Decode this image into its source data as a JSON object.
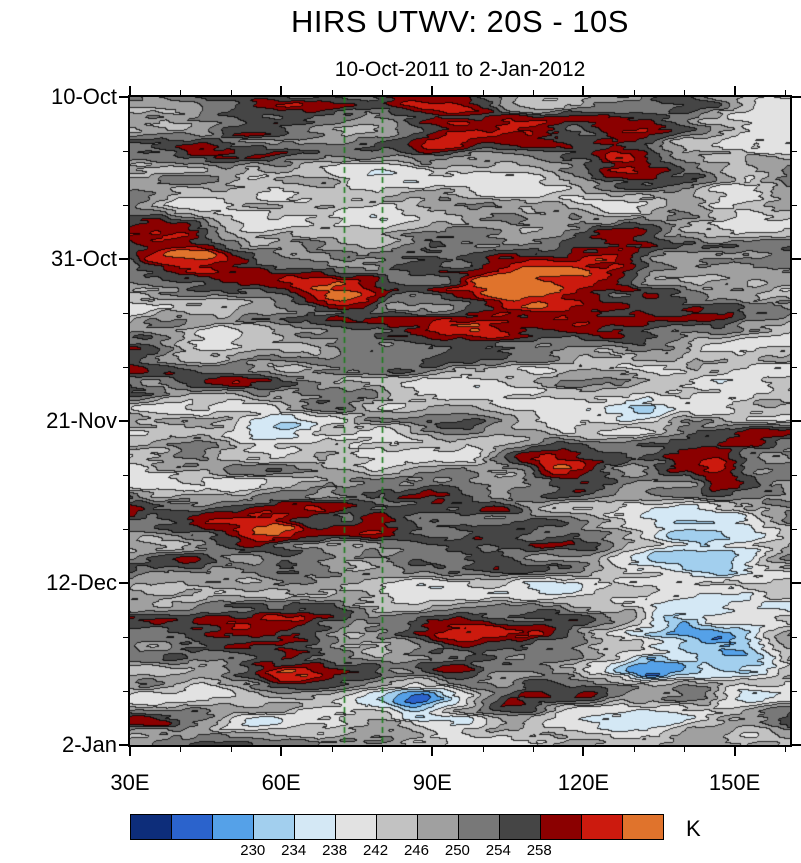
{
  "title": "HIRS UTWV: 20S - 10S",
  "subtitle": "10-Oct-2011 to 2-Jan-2012",
  "colorbar_unit": "K",
  "chart_data": {
    "type": "heatmap",
    "title": "HIRS UTWV: 20S - 10S",
    "subtitle": "10-Oct-2011 to 2-Jan-2012",
    "description": "Time-longitude (Hovmoller) diagram of HIRS upper-tropospheric water vapor brightness temperature averaged 20S-10S",
    "x_axis": {
      "unit": "longitude",
      "min": 30,
      "max": 161,
      "major_ticks": [
        30,
        60,
        90,
        120,
        150
      ],
      "major_labels": [
        "30E",
        "60E",
        "90E",
        "120E",
        "150E"
      ],
      "minor_ticks": [
        40,
        50,
        70,
        80,
        100,
        110,
        130,
        140,
        160
      ]
    },
    "y_axis": {
      "unit": "date",
      "start": "10-Oct-2011",
      "end": "2-Jan-2012",
      "span_days": 84,
      "major_tick_days": [
        0,
        21,
        42,
        63,
        84
      ],
      "major_labels": [
        "10-Oct",
        "31-Oct",
        "21-Nov",
        "12-Dec",
        "2-Jan"
      ],
      "minor_tick_days": [
        7,
        14,
        28,
        35,
        49,
        56,
        70,
        77
      ]
    },
    "colorbar": {
      "unit": "K",
      "tick_labels": [
        "230",
        "234",
        "238",
        "242",
        "246",
        "250",
        "254",
        "258"
      ],
      "first_label_boundary": 3,
      "level_start": 218,
      "level_step": 4,
      "colors": [
        "#0d2d7a",
        "#2b63cc",
        "#55a1e8",
        "#a2cfee",
        "#d4e8f5",
        "#e2e2e2",
        "#c2c2c2",
        "#a0a0a0",
        "#787878",
        "#454545",
        "#8b0000",
        "#cc1a0e",
        "#e0732c"
      ]
    },
    "reference_lines": {
      "color": "#1e7d1e",
      "style": "dashed",
      "x_values": [
        72.5,
        80
      ]
    },
    "field": {
      "base_K": 248,
      "noise_amplitude_K": 22,
      "anomalies": [
        {
          "lon": 93,
          "t": 0.035,
          "amp": 17,
          "slon": 10,
          "st": 0.035
        },
        {
          "lon": 111,
          "t": 0.065,
          "amp": 15,
          "slon": 8,
          "st": 0.03
        },
        {
          "lon": 127,
          "t": 0.08,
          "amp": 10,
          "slon": 5,
          "st": 0.02
        },
        {
          "lon": 40,
          "t": 0.225,
          "amp": 17,
          "slon": 8,
          "st": 0.03
        },
        {
          "lon": 108,
          "t": 0.29,
          "amp": 24,
          "slon": 10,
          "st": 0.028
        },
        {
          "lon": 67,
          "t": 0.3,
          "amp": 11,
          "slon": 8,
          "st": 0.018
        },
        {
          "lon": 33,
          "t": 0.385,
          "amp": 13,
          "slon": 5,
          "st": 0.02
        },
        {
          "lon": 146,
          "t": 0.345,
          "amp": 12,
          "slon": 7,
          "st": 0.02
        },
        {
          "lon": 96,
          "t": 0.5,
          "amp": 13,
          "slon": 9,
          "st": 0.02
        },
        {
          "lon": 113,
          "t": 0.55,
          "amp": 10,
          "slon": 6,
          "st": 0.018
        },
        {
          "lon": 122,
          "t": 0.6,
          "amp": 11,
          "slon": 8,
          "st": 0.015
        },
        {
          "lon": 147,
          "t": 0.575,
          "amp": 11,
          "slon": 6,
          "st": 0.02
        },
        {
          "lon": 55,
          "t": 0.665,
          "amp": 15,
          "slon": 7,
          "st": 0.025
        },
        {
          "lon": 92,
          "t": 0.825,
          "amp": 17,
          "slon": 8,
          "st": 0.025
        },
        {
          "lon": 63,
          "t": 0.905,
          "amp": 15,
          "slon": 8,
          "st": 0.02
        },
        {
          "lon": 106,
          "t": 0.955,
          "amp": 9,
          "slon": 5,
          "st": 0.015
        },
        {
          "lon": 150,
          "t": 0.145,
          "amp": -11,
          "slon": 6,
          "st": 0.025
        },
        {
          "lon": 131,
          "t": 0.475,
          "amp": -8,
          "slon": 4,
          "st": 0.015
        },
        {
          "lon": 62,
          "t": 0.505,
          "amp": -7,
          "slon": 4,
          "st": 0.012
        },
        {
          "lon": 140,
          "t": 0.78,
          "amp": -9,
          "slon": 13,
          "st": 0.1
        },
        {
          "lon": 139,
          "t": 0.8,
          "amp": -9,
          "slon": 5,
          "st": 0.025
        },
        {
          "lon": 150,
          "t": 0.845,
          "amp": -13,
          "slon": 6,
          "st": 0.03
        },
        {
          "lon": 133,
          "t": 0.885,
          "amp": -11,
          "slon": 4,
          "st": 0.02
        },
        {
          "lon": 152,
          "t": 0.93,
          "amp": -9,
          "slon": 5,
          "st": 0.02
        },
        {
          "lon": 89,
          "t": 0.93,
          "amp": -13,
          "slon": 7,
          "st": 0.03
        },
        {
          "lon": 86,
          "t": 0.945,
          "amp": -6,
          "slon": 3,
          "st": 0.012
        },
        {
          "lon": 104,
          "t": 0.9,
          "amp": -7,
          "slon": 3,
          "st": 0.012
        }
      ]
    }
  }
}
